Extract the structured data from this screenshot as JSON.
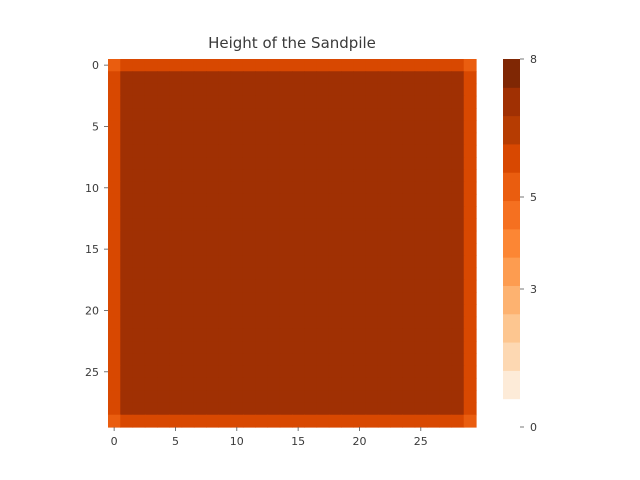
{
  "chart_data": {
    "type": "heatmap",
    "title": "Height of the Sandpile",
    "xlabel": "",
    "ylabel": "",
    "grid": false,
    "legend": "colorbar-right",
    "x_ticks": [
      0,
      5,
      10,
      15,
      20,
      25
    ],
    "y_ticks": [
      0,
      5,
      10,
      15,
      20,
      25
    ],
    "shape": [
      30,
      30
    ],
    "values_description_rows": {
      "corner_cells": 5,
      "edge_cells": 6,
      "interior_cells": 7
    },
    "colorbar": {
      "min": 0,
      "max": 8,
      "ticks": [
        0,
        3,
        5,
        8
      ],
      "colors": [
        "#ffffff",
        "#fdebd8",
        "#fdd8b2",
        "#fdc690",
        "#fdb270",
        "#fd9c50",
        "#fc8634",
        "#f57020",
        "#ea5d0f",
        "#d84801",
        "#b63c02",
        "#a03003",
        "#7f2704"
      ]
    }
  }
}
